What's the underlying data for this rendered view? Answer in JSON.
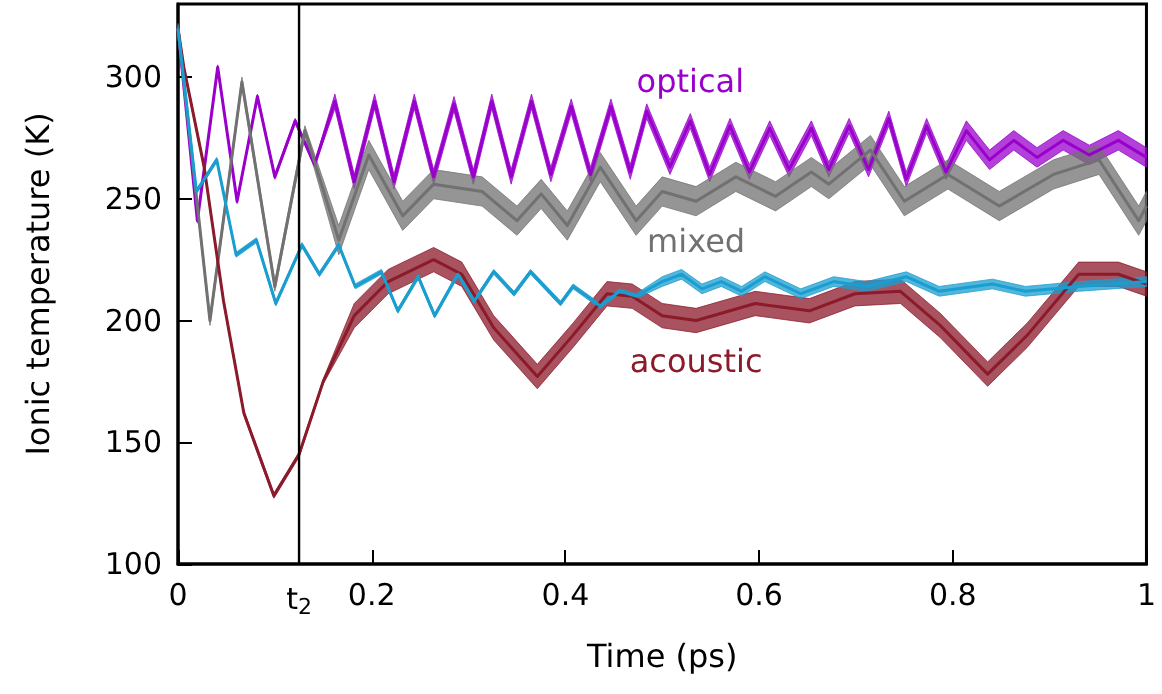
{
  "chart_data": {
    "type": "line",
    "xlabel": "Time (ps)",
    "ylabel": "Ionic temperature (K)",
    "xlim": [
      0,
      1
    ],
    "ylim": [
      100,
      330
    ],
    "xticks": [
      0,
      0.2,
      0.4,
      0.6,
      0.8,
      1
    ],
    "yticks": [
      100,
      150,
      200,
      250,
      300
    ],
    "grid": false,
    "legend": false,
    "marker": "none",
    "line_style": "solid",
    "ref_lines": [
      {
        "axis": "x",
        "value": 0.125,
        "label": "t$_{2}$",
        "color": "#000000"
      }
    ],
    "series": [
      {
        "name": "optical",
        "color": "#9900cc",
        "x": [
          0,
          0.02,
          0.041,
          0.061,
          0.082,
          0.1,
          0.121,
          0.141,
          0.162,
          0.182,
          0.203,
          0.223,
          0.244,
          0.264,
          0.285,
          0.305,
          0.324,
          0.344,
          0.365,
          0.385,
          0.406,
          0.426,
          0.447,
          0.467,
          0.484,
          0.508,
          0.529,
          0.549,
          0.57,
          0.59,
          0.611,
          0.631,
          0.654,
          0.672,
          0.693,
          0.713,
          0.734,
          0.752,
          0.773,
          0.793,
          0.814,
          0.838,
          0.863,
          0.887,
          0.914,
          0.941,
          0.971,
          1
        ],
        "values": [
          320,
          241,
          304,
          249,
          292,
          259,
          282,
          264,
          290,
          257,
          290,
          257,
          290,
          259,
          289,
          259,
          290,
          259,
          290,
          260,
          288,
          260,
          288,
          261,
          286,
          263,
          282,
          260,
          280,
          261,
          279,
          262,
          279,
          262,
          280,
          262,
          283,
          258,
          280,
          261,
          278,
          266,
          274,
          267,
          274,
          268,
          274,
          267
        ],
        "lower": [
          319,
          240,
          303,
          248,
          291,
          258,
          281,
          263,
          287,
          254,
          287,
          254,
          287,
          256,
          286,
          256,
          287,
          256,
          287,
          257,
          285,
          257,
          285,
          258,
          283,
          260,
          279,
          257,
          277,
          258,
          276,
          259,
          276,
          259,
          277,
          259,
          280,
          255,
          277,
          258,
          274,
          262,
          270,
          263,
          270,
          264,
          270,
          263
        ],
        "upper": [
          321,
          242,
          305,
          250,
          293,
          260,
          283,
          265,
          293,
          260,
          293,
          260,
          293,
          262,
          292,
          262,
          293,
          262,
          293,
          263,
          291,
          263,
          291,
          264,
          289,
          266,
          285,
          263,
          283,
          264,
          282,
          265,
          282,
          265,
          283,
          265,
          286,
          261,
          283,
          264,
          282,
          270,
          278,
          271,
          278,
          272,
          278,
          271
        ]
      },
      {
        "name": "mixed",
        "color": "#717171",
        "x": [
          0,
          0.033,
          0.066,
          0.1,
          0.131,
          0.166,
          0.197,
          0.232,
          0.264,
          0.314,
          0.35,
          0.375,
          0.402,
          0.436,
          0.473,
          0.5,
          0.535,
          0.576,
          0.617,
          0.654,
          0.672,
          0.715,
          0.75,
          0.795,
          0.848,
          0.904,
          0.951,
          0.992,
          1
        ],
        "values": [
          320,
          200,
          298,
          214,
          278,
          233,
          268,
          243,
          256,
          253,
          241,
          252,
          239,
          263,
          241,
          253,
          249,
          259,
          251,
          261,
          256,
          270,
          249,
          260,
          247,
          260,
          266,
          241,
          247
        ],
        "lower": [
          318,
          198,
          296,
          212,
          276,
          227,
          262,
          237,
          250,
          247,
          235,
          246,
          233,
          257,
          235,
          247,
          243,
          253,
          245,
          255,
          250,
          264,
          243,
          254,
          241,
          254,
          260,
          235,
          241
        ],
        "upper": [
          322,
          202,
          300,
          216,
          280,
          239,
          274,
          249,
          262,
          259,
          247,
          258,
          245,
          269,
          247,
          259,
          255,
          265,
          257,
          267,
          262,
          276,
          255,
          266,
          253,
          266,
          272,
          247,
          253
        ]
      },
      {
        "name": "acoustic",
        "color": "#8b1a2a",
        "x": [
          0,
          0.006,
          0.027,
          0.047,
          0.068,
          0.099,
          0.125,
          0.15,
          0.182,
          0.217,
          0.264,
          0.293,
          0.326,
          0.371,
          0.408,
          0.443,
          0.469,
          0.5,
          0.535,
          0.596,
          0.652,
          0.699,
          0.746,
          0.787,
          0.836,
          0.877,
          0.93,
          0.971,
          1
        ],
        "values": [
          320,
          304,
          263,
          208,
          162,
          128,
          145,
          175,
          202,
          216,
          225,
          219,
          197,
          177,
          194,
          211,
          210,
          202,
          200,
          207,
          204,
          211,
          212,
          198,
          178,
          194,
          219,
          219,
          215
        ],
        "lower": [
          319,
          303,
          262,
          207,
          161,
          127,
          144,
          174,
          197,
          211,
          220,
          214,
          192,
          172,
          189,
          206,
          205,
          197,
          195,
          202,
          199,
          206,
          207,
          193,
          173,
          189,
          214,
          214,
          210
        ],
        "upper": [
          321,
          305,
          264,
          209,
          163,
          129,
          146,
          176,
          207,
          221,
          230,
          224,
          202,
          182,
          199,
          216,
          215,
          207,
          205,
          212,
          209,
          216,
          217,
          203,
          183,
          199,
          224,
          224,
          220
        ]
      },
      {
        "color": "#1a9ed0",
        "x": [
          0,
          0.019,
          0.04,
          0.06,
          0.081,
          0.101,
          0.128,
          0.146,
          0.166,
          0.183,
          0.21,
          0.227,
          0.248,
          0.265,
          0.289,
          0.306,
          0.326,
          0.347,
          0.364,
          0.395,
          0.408,
          0.436,
          0.456,
          0.473,
          0.5,
          0.52,
          0.541,
          0.561,
          0.582,
          0.606,
          0.643,
          0.677,
          0.711,
          0.752,
          0.786,
          0.841,
          0.875,
          0.93,
          1
        ],
        "values": [
          320,
          253,
          266,
          227,
          233,
          207,
          231,
          219,
          231,
          214,
          220,
          204,
          218,
          202,
          219,
          208,
          220,
          211,
          220,
          207,
          214,
          206,
          212,
          210,
          216,
          219,
          213,
          216,
          212,
          218,
          211,
          216,
          214,
          218,
          212,
          215,
          212,
          214,
          216
        ],
        "lower": [
          319,
          252,
          265,
          226,
          232,
          206,
          230,
          218,
          230,
          213,
          219,
          203,
          217,
          201,
          218,
          207,
          219,
          210,
          219,
          206,
          213,
          205,
          211,
          209,
          214,
          217,
          211,
          214,
          210,
          216,
          209,
          214,
          212,
          216,
          210,
          213,
          210,
          212,
          214
        ],
        "upper": [
          321,
          254,
          267,
          228,
          234,
          208,
          232,
          220,
          232,
          215,
          221,
          205,
          219,
          203,
          220,
          209,
          221,
          212,
          221,
          208,
          215,
          207,
          213,
          211,
          218,
          221,
          215,
          218,
          214,
          220,
          213,
          218,
          216,
          220,
          214,
          217,
          214,
          216,
          218
        ]
      }
    ]
  }
}
